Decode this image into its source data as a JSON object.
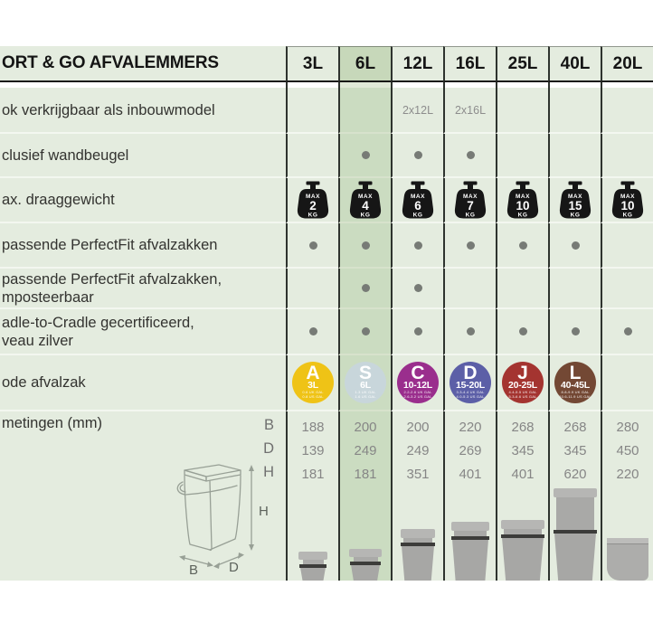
{
  "table": {
    "title": "ORT & GO AFVALEMMERS",
    "columns": [
      "3L",
      "6L",
      "12L",
      "16L",
      "25L",
      "40L",
      "20L"
    ],
    "highlighted_column_index": 1,
    "colors": {
      "background": "#e4ecdf",
      "highlight": "#cbdcc1",
      "grid_line": "#2e332e",
      "dot": "#777b76",
      "bin_gray": "#a7a7a5"
    },
    "weight_prefix": "MAX",
    "weight_unit": "KG",
    "rows": [
      {
        "id": "inbouwmodel",
        "type": "text",
        "label": [
          "ok verkrijgbaar als inbouwmodel"
        ],
        "values": [
          "",
          "",
          "2x12L",
          "2x16L",
          "",
          "",
          ""
        ]
      },
      {
        "id": "wandbeugel",
        "type": "dots",
        "label": [
          "clusief wandbeugel"
        ],
        "values": [
          0,
          1,
          1,
          1,
          0,
          0,
          0
        ]
      },
      {
        "id": "draaggewicht",
        "type": "weights",
        "label": [
          "ax. draaggewicht"
        ],
        "values": [
          "2",
          "4",
          "6",
          "7",
          "10",
          "15",
          "10"
        ]
      },
      {
        "id": "perfectfit",
        "type": "dots",
        "label": [
          "passende PerfectFit afvalzakken"
        ],
        "values": [
          1,
          1,
          1,
          1,
          1,
          1,
          0
        ]
      },
      {
        "id": "perfectfit-composteerbaar",
        "type": "dots",
        "label": [
          "passende PerfectFit afvalzakken,",
          "mposteerbaar"
        ],
        "values": [
          0,
          1,
          1,
          0,
          0,
          0,
          0
        ]
      },
      {
        "id": "cradle-to-cradle",
        "type": "dots",
        "label": [
          "adle-to-Cradle gecertificeerd,",
          "veau zilver"
        ],
        "values": [
          1,
          1,
          1,
          1,
          1,
          1,
          1
        ]
      },
      {
        "id": "code-afvalzak",
        "type": "badges",
        "label": [
          "ode afvalzak"
        ],
        "values": [
          {
            "letter": "A",
            "size": "3L",
            "bg": "#efc316",
            "sub": [
              "0.6 UK GAL",
              "0.8 US GAL"
            ]
          },
          {
            "letter": "S",
            "size": "6L",
            "bg": "#c8d6db",
            "sub": [
              "1.3 UK GAL",
              "1.6 US GAL"
            ]
          },
          {
            "letter": "C",
            "size": "10-12L",
            "bg": "#9a2e8d",
            "sub": [
              "2.2-2.6 UK GAL",
              "2.6-3.2 US GAL"
            ]
          },
          {
            "letter": "D",
            "size": "15-20L",
            "bg": "#5c5fa7",
            "sub": [
              "3.3-4.4 UK GAL",
              "4.0-5.3 US GAL"
            ]
          },
          {
            "letter": "J",
            "size": "20-25L",
            "bg": "#a43430",
            "sub": [
              "4.4-5.5 UK GAL",
              "5.3-6.6 US GAL"
            ]
          },
          {
            "letter": "L",
            "size": "40-45L",
            "bg": "#734834",
            "sub": [
              "8.8-9.9 UK GAL",
              "10.6-11.9 US GAL"
            ]
          },
          null
        ]
      },
      {
        "id": "afmetingen",
        "type": "dims",
        "label": [
          "metingen (mm)"
        ],
        "dim_labels": [
          "B",
          "D",
          "H"
        ],
        "values": [
          [
            188,
            139,
            181
          ],
          [
            200,
            249,
            181
          ],
          [
            200,
            249,
            351
          ],
          [
            220,
            269,
            401
          ],
          [
            268,
            345,
            401
          ],
          [
            268,
            345,
            620
          ],
          [
            280,
            450,
            220
          ]
        ],
        "bins": [
          "small-3",
          "small-6",
          "tall-12",
          "tall-16",
          "tall-25",
          "tall-40",
          "builtin-20"
        ]
      }
    ]
  },
  "diagram": {
    "labels": {
      "height": "H",
      "width": "B",
      "depth": "D"
    }
  }
}
